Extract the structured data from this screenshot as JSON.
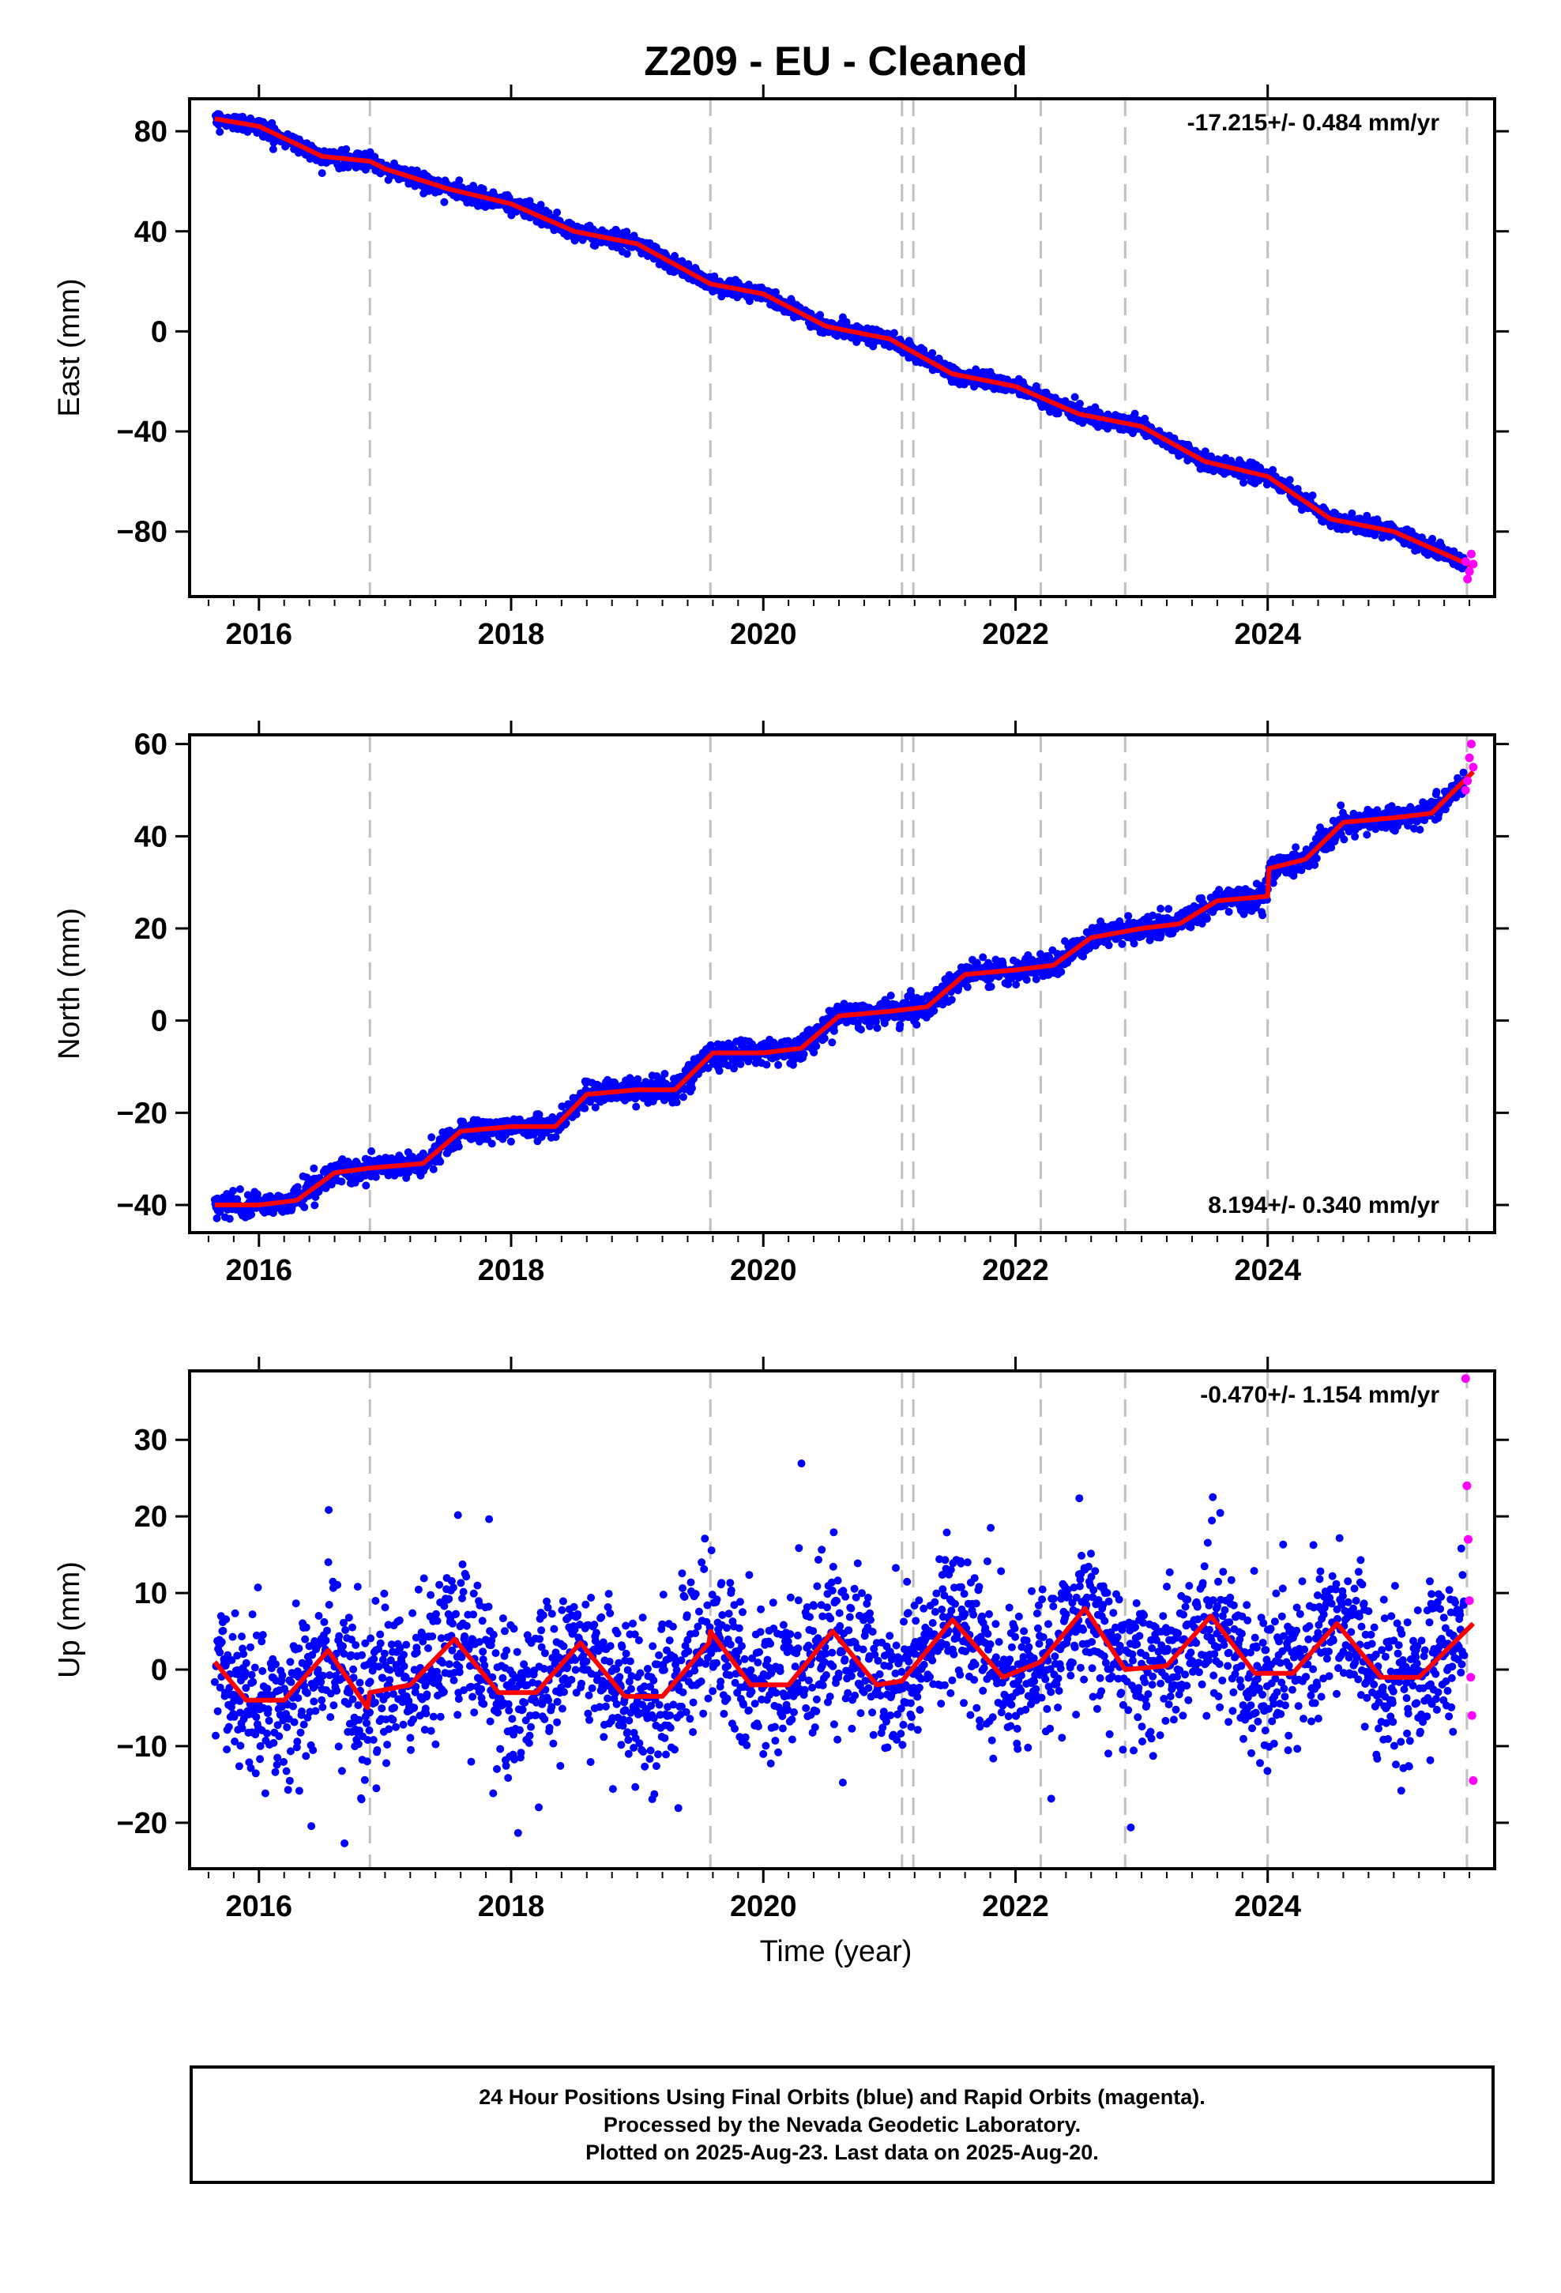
{
  "title": "Z209  - EU - Cleaned",
  "colors": {
    "final_orbits": "#0000ff",
    "rapid_orbits": "#ff00ff",
    "model_fit": "#ff0000",
    "event_lines": "#c0c0c0",
    "axes": "#000000"
  },
  "xlabel": "Time (year)",
  "event_lines": [
    2016.88,
    2019.58,
    2021.1,
    2021.19,
    2022.2,
    2022.87,
    2024.0,
    2025.58
  ],
  "chart_data": [
    {
      "type": "scatter",
      "component": "east",
      "ylabel": "East (mm)",
      "rate_text": "-17.215+/- 0.484 mm/yr",
      "rate_position": "top-right",
      "xlim": [
        2015.45,
        2025.8
      ],
      "ylim": [
        -106,
        93
      ],
      "xticks": [
        2016,
        2018,
        2020,
        2022,
        2024
      ],
      "xtick_labels": [
        "2016",
        "2018",
        "2020",
        "2022",
        "2024"
      ],
      "yticks": [
        80,
        40,
        0,
        -40,
        -80
      ],
      "ytick_labels": [
        "80",
        "40",
        "0",
        "−40",
        "−80"
      ],
      "rate_mm_per_yr": -17.215,
      "seasonal_amp_mm": 1.6,
      "noise_mm": 1.6,
      "data_start": 2015.65,
      "data_end": 2025.56,
      "fit_anchors": {
        "x": [
          2015.65,
          2016.0,
          2016.5,
          2016.88,
          2017.0,
          2017.5,
          2018.0,
          2018.5,
          2019.0,
          2019.58,
          2020.0,
          2020.5,
          2021.0,
          2021.5,
          2022.0,
          2022.5,
          2023.0,
          2023.5,
          2024.0,
          2024.5,
          2025.0,
          2025.63
        ],
        "y": [
          85,
          82,
          70,
          68,
          65,
          57,
          51,
          40,
          35,
          19,
          15,
          2,
          -3,
          -17,
          -22,
          -33,
          -38,
          -52,
          -58,
          -75,
          -80,
          -94
        ]
      },
      "rapid": {
        "x": [
          2025.57,
          2025.585,
          2025.6,
          2025.615,
          2025.63
        ],
        "y": [
          -92,
          -99,
          -96,
          -89,
          -93
        ]
      }
    },
    {
      "type": "scatter",
      "component": "north",
      "ylabel": "North (mm)",
      "rate_text": "8.194+/- 0.340 mm/yr",
      "rate_position": "bottom-right",
      "xlim": [
        2015.45,
        2025.8
      ],
      "ylim": [
        -46,
        62
      ],
      "xticks": [
        2016,
        2018,
        2020,
        2022,
        2024
      ],
      "xtick_labels": [
        "2016",
        "2018",
        "2020",
        "2022",
        "2024"
      ],
      "yticks": [
        60,
        40,
        20,
        0,
        -20,
        -40
      ],
      "ytick_labels": [
        "60",
        "40",
        "20",
        "0",
        "−20",
        "−40"
      ],
      "rate_mm_per_yr": 8.194,
      "seasonal_amp_mm": 1.3,
      "noise_mm": 1.3,
      "data_start": 2015.65,
      "data_end": 2025.56,
      "fit_anchors": {
        "x": [
          2015.65,
          2016.0,
          2016.3,
          2016.6,
          2016.88,
          2017.3,
          2017.6,
          2018.0,
          2018.35,
          2018.6,
          2019.0,
          2019.3,
          2019.6,
          2020.0,
          2020.3,
          2020.6,
          2021.0,
          2021.3,
          2021.6,
          2022.0,
          2022.3,
          2022.6,
          2023.0,
          2023.3,
          2023.6,
          2024.0,
          2024.01,
          2024.3,
          2024.6,
          2025.0,
          2025.3,
          2025.63
        ],
        "y": [
          -40,
          -40,
          -39,
          -33,
          -32,
          -31,
          -24,
          -23,
          -23,
          -16,
          -15,
          -15,
          -7,
          -7,
          -6,
          1,
          2,
          3,
          10,
          11,
          12,
          18,
          20,
          21,
          26,
          27,
          33,
          35,
          43,
          44,
          45,
          54
        ]
      },
      "rapid": {
        "x": [
          2025.57,
          2025.585,
          2025.6,
          2025.615,
          2025.63
        ],
        "y": [
          50,
          52,
          57,
          60,
          55
        ]
      }
    },
    {
      "type": "scatter",
      "component": "up",
      "ylabel": "Up (mm)",
      "rate_text": "-0.470+/- 1.154 mm/yr",
      "rate_position": "top-right",
      "xlim": [
        2015.45,
        2025.8
      ],
      "ylim": [
        -26,
        39
      ],
      "xticks": [
        2016,
        2018,
        2020,
        2022,
        2024
      ],
      "xtick_labels": [
        "2016",
        "2018",
        "2020",
        "2022",
        "2024"
      ],
      "yticks": [
        30,
        20,
        10,
        0,
        -10,
        -20
      ],
      "ytick_labels": [
        "30",
        "20",
        "10",
        "0",
        "−10",
        "−20"
      ],
      "rate_mm_per_yr": -0.47,
      "seasonal_amp_mm": 4.5,
      "noise_mm": 4.8,
      "data_start": 2015.65,
      "data_end": 2025.56,
      "fit_anchors": {
        "x": [
          2015.65,
          2015.9,
          2016.2,
          2016.55,
          2016.86,
          2016.88,
          2017.2,
          2017.55,
          2017.9,
          2018.2,
          2018.55,
          2018.9,
          2019.2,
          2019.57,
          2019.58,
          2019.9,
          2020.2,
          2020.55,
          2020.9,
          2021.1,
          2021.15,
          2021.5,
          2021.9,
          2022.2,
          2022.55,
          2022.87,
          2023.2,
          2023.55,
          2023.9,
          2024.2,
          2024.55,
          2024.9,
          2025.2,
          2025.63
        ],
        "y": [
          1,
          -4,
          -4,
          2.5,
          -5,
          -3,
          -2,
          4,
          -3,
          -3,
          3.5,
          -3.5,
          -3.5,
          3.5,
          5,
          -2,
          -2,
          5,
          -2,
          -1.5,
          -0.5,
          6.5,
          -1,
          1,
          8,
          0,
          0.5,
          7,
          -0.5,
          -0.5,
          6,
          -1,
          -1,
          6
        ]
      },
      "rapid": {
        "x": [
          2025.57,
          2025.58,
          2025.59,
          2025.6,
          2025.61,
          2025.62,
          2025.63
        ],
        "y": [
          38,
          24,
          17,
          9,
          -1,
          -6,
          -14.5
        ]
      }
    }
  ],
  "footer": {
    "line1": "24 Hour Positions Using Final Orbits (blue) and Rapid Orbits (magenta).",
    "line2": "Processed by the Nevada Geodetic Laboratory.",
    "line3": "Plotted on 2025-Aug-23. Last data on 2025-Aug-20."
  }
}
